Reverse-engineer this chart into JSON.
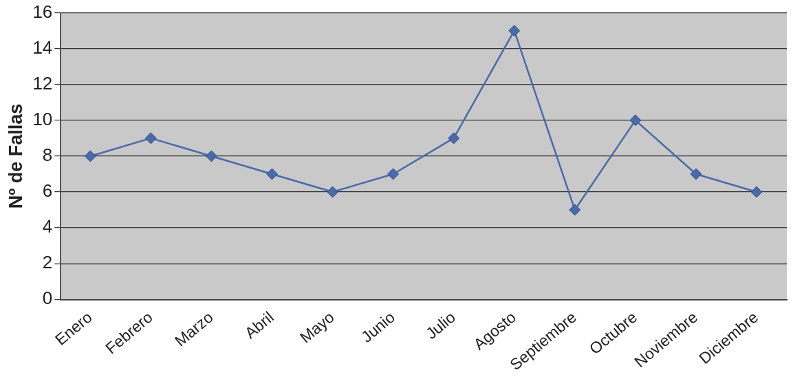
{
  "chart_data": {
    "type": "line",
    "ylabel": "Nº de Fallas",
    "categories": [
      "Enero",
      "Febrero",
      "Marzo",
      "Abril",
      "Mayo",
      "Junio",
      "Julio",
      "Agosto",
      "Septiembre",
      "Octubre",
      "Noviembre",
      "Diciembre"
    ],
    "series": [
      {
        "color": "#4a6aa8",
        "values": [
          8,
          9,
          8,
          7,
          6,
          7,
          9,
          15,
          5,
          10,
          7,
          6
        ]
      }
    ],
    "ylim": [
      0,
      16
    ],
    "yticks": [
      0,
      2,
      4,
      6,
      8,
      10,
      12,
      14,
      16
    ],
    "grid": "y",
    "legend": false,
    "marker": "diamond",
    "line_style": "solid"
  }
}
